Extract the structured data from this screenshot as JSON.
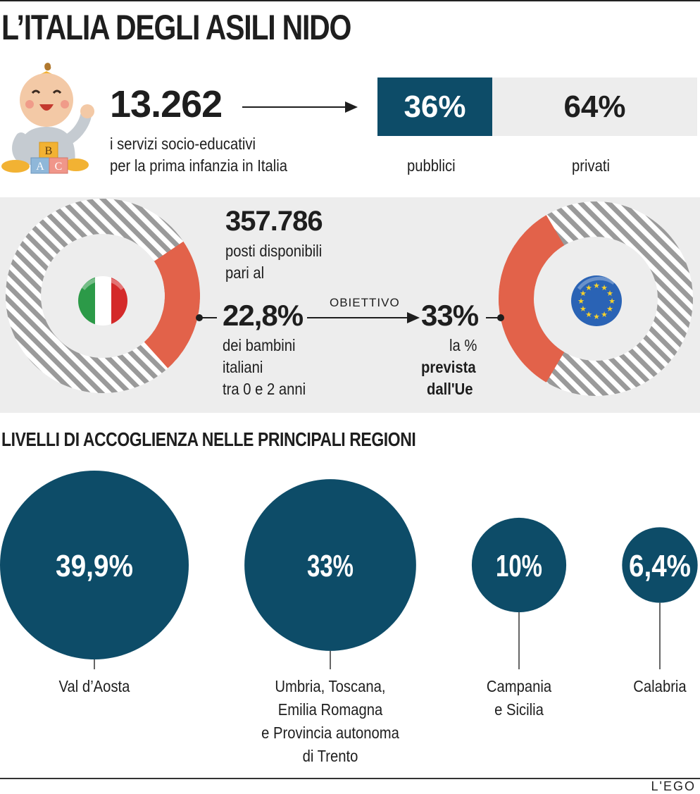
{
  "title": "L’ITALIA DEGLI ASILI NIDO",
  "services": {
    "number": "13.262",
    "line1": "i servizi socio-educativi",
    "line2": "per la prima infanzia in Italia",
    "blocks_letters": [
      "B",
      "A",
      "C"
    ]
  },
  "split": {
    "public_pct": "36%",
    "private_pct": "64%",
    "public_label": "pubblici",
    "private_label": "privati"
  },
  "places": {
    "number": "357.786",
    "line1": "posti disponibili",
    "line2": "pari al",
    "pct": "22,8%",
    "desc1": "dei bambini",
    "desc2": "italiani",
    "desc3": "tra 0 e 2 anni",
    "goal_label": "OBIETTIVO",
    "eu_pct": "33%",
    "eu1": "la %",
    "eu2": "prevista",
    "eu3": "dall'Ue"
  },
  "regions_title": "LIVELLI DI ACCOGLIENZA NELLE PRINCIPALI REGIONI",
  "brand": "L'EGO",
  "colors": {
    "navy": "#0d4c68",
    "coral": "#e2624a",
    "stripe_light": "#ffffff",
    "stripe_dark": "#9a9a9a",
    "band": "#ededed"
  },
  "chart_data": [
    {
      "type": "bar",
      "categories": [
        "pubblici",
        "privati"
      ],
      "values": [
        36,
        64
      ],
      "unit": "%"
    },
    {
      "type": "pie",
      "labels": [
        "22,8%"
      ],
      "values": [
        22.8
      ],
      "total": 100,
      "unit": "%"
    },
    {
      "type": "pie",
      "labels": [
        "33%"
      ],
      "values": [
        33
      ],
      "total": 100,
      "unit": "%"
    },
    {
      "type": "scatter",
      "categories": [
        "Val d’Aosta",
        "Umbria, Toscana, Emilia Romagna e Provincia autonoma di Trento",
        "Campania e Sicilia",
        "Calabria"
      ],
      "values": [
        39.9,
        33,
        10,
        6.4
      ],
      "value_labels": [
        "39,9%",
        "33%",
        "10%",
        "6,4%"
      ],
      "label_lines": [
        [
          "Val d’Aosta"
        ],
        [
          "Umbria, Toscana,",
          "Emilia Romagna",
          "e Provincia autonoma",
          "di Trento"
        ],
        [
          "Campania",
          "e Sicilia"
        ],
        [
          "Calabria"
        ]
      ],
      "unit": "%"
    }
  ]
}
